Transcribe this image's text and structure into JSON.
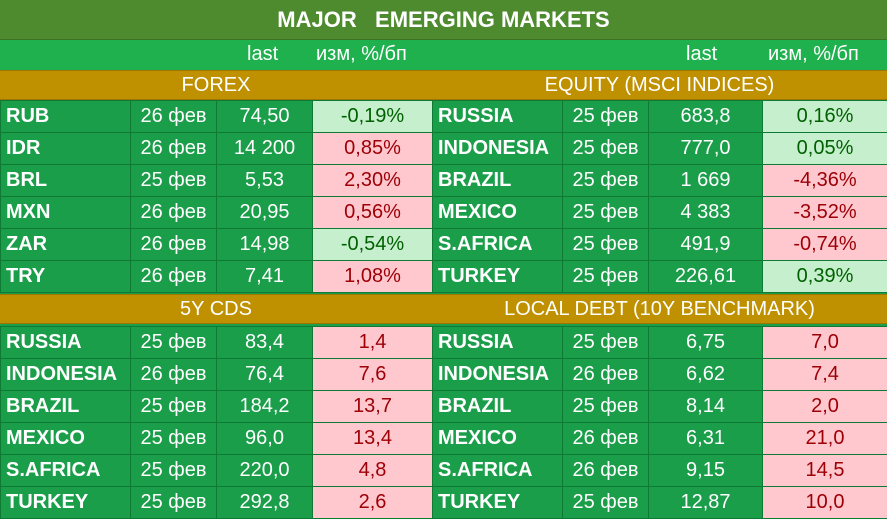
{
  "title": "MAJOR   EMERGING MARKETS",
  "header": {
    "last": "last",
    "change": "изм, %/бп"
  },
  "sections": {
    "forex": {
      "title": "FOREX",
      "rows": [
        {
          "name": "RUB",
          "date": "26 фев",
          "last": "74,50",
          "chg": "-0,19%",
          "dir": "pos"
        },
        {
          "name": "IDR",
          "date": "26 фев",
          "last": "14 200",
          "chg": "0,85%",
          "dir": "neg"
        },
        {
          "name": "BRL",
          "date": "25 фев",
          "last": "5,53",
          "chg": "2,30%",
          "dir": "neg"
        },
        {
          "name": "MXN",
          "date": "26 фев",
          "last": "20,95",
          "chg": "0,56%",
          "dir": "neg"
        },
        {
          "name": "ZAR",
          "date": "26 фев",
          "last": "14,98",
          "chg": "-0,54%",
          "dir": "pos"
        },
        {
          "name": "TRY",
          "date": "26 фев",
          "last": "7,41",
          "chg": "1,08%",
          "dir": "neg"
        }
      ]
    },
    "equity": {
      "title": "EQUITY (MSCI INDICES)",
      "rows": [
        {
          "name": "RUSSIA",
          "date": "25 фев",
          "last": "683,8",
          "chg": "0,16%",
          "dir": "pos"
        },
        {
          "name": "INDONESIA",
          "date": "25 фев",
          "last": "777,0",
          "chg": "0,05%",
          "dir": "pos"
        },
        {
          "name": "BRAZIL",
          "date": "25 фев",
          "last": "1 669",
          "chg": "-4,36%",
          "dir": "neg"
        },
        {
          "name": "MEXICO",
          "date": "25 фев",
          "last": "4 383",
          "chg": "-3,52%",
          "dir": "neg"
        },
        {
          "name": "S.AFRICA",
          "date": "25 фев",
          "last": "491,9",
          "chg": "-0,74%",
          "dir": "neg"
        },
        {
          "name": "TURKEY",
          "date": "25 фев",
          "last": "226,61",
          "chg": "0,39%",
          "dir": "pos"
        }
      ]
    },
    "cds": {
      "title": "5Y CDS",
      "rows": [
        {
          "name": "RUSSIA",
          "date": "25 фев",
          "last": "83,4",
          "chg": "1,4",
          "dir": "neg"
        },
        {
          "name": "INDONESIA",
          "date": "26 фев",
          "last": "76,4",
          "chg": "7,6",
          "dir": "neg"
        },
        {
          "name": "BRAZIL",
          "date": "25 фев",
          "last": "184,2",
          "chg": "13,7",
          "dir": "neg"
        },
        {
          "name": "MEXICO",
          "date": "25 фев",
          "last": "96,0",
          "chg": "13,4",
          "dir": "neg"
        },
        {
          "name": "S.AFRICA",
          "date": "25 фев",
          "last": "220,0",
          "chg": "4,8",
          "dir": "neg"
        },
        {
          "name": "TURKEY",
          "date": "25 фев",
          "last": "292,8",
          "chg": "2,6",
          "dir": "neg"
        }
      ]
    },
    "debt": {
      "title": "LOCAL DEBT (10Y BENCHMARK)",
      "rows": [
        {
          "name": "RUSSIA",
          "date": "25 фев",
          "last": "6,75",
          "chg": "7,0",
          "dir": "neg"
        },
        {
          "name": "INDONESIA",
          "date": "26 фев",
          "last": "6,62",
          "chg": "7,4",
          "dir": "neg"
        },
        {
          "name": "BRAZIL",
          "date": "25 фев",
          "last": "8,14",
          "chg": "2,0",
          "dir": "neg"
        },
        {
          "name": "MEXICO",
          "date": "26 фев",
          "last": "6,31",
          "chg": "21,0",
          "dir": "neg"
        },
        {
          "name": "S.AFRICA",
          "date": "26 фев",
          "last": "9,15",
          "chg": "14,5",
          "dir": "neg"
        },
        {
          "name": "TURKEY",
          "date": "25 фев",
          "last": "12,87",
          "chg": "10,0",
          "dir": "neg"
        }
      ]
    }
  },
  "colors": {
    "title_bg": "#4e8a2e",
    "cell_bg": "#1a9e4a",
    "section_bg": "#bf9000",
    "positive_bg": "#c6efce",
    "positive_fg": "#006100",
    "negative_bg": "#ffc7ce",
    "negative_fg": "#9c0006"
  }
}
